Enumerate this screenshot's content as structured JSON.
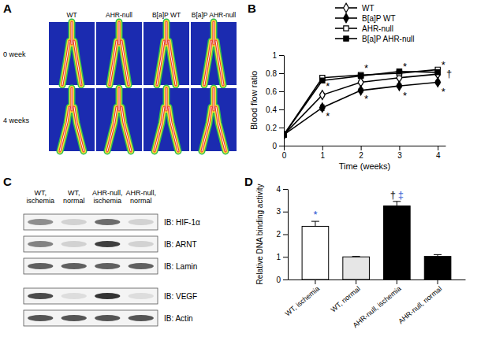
{
  "panels": {
    "A": {
      "label": "A",
      "columns": [
        "WT",
        "AHR-null",
        "B[a]P WT",
        "B[a]P AHR-null"
      ],
      "rows": [
        "0 week",
        "4 weeks"
      ]
    },
    "C": {
      "label": "C",
      "lanes": [
        "WT, ischemia",
        "WT, normal",
        "AHR-null, ischemia",
        "AHR-null, normal"
      ],
      "blots": [
        {
          "label": "IB: HIF-1α",
          "intensity": [
            0.45,
            0.15,
            0.6,
            0.15
          ]
        },
        {
          "label": "IB: ARNT",
          "intensity": [
            0.5,
            0.15,
            0.8,
            0.15
          ]
        },
        {
          "label": "IB: Lamin",
          "intensity": [
            0.65,
            0.65,
            0.65,
            0.65
          ]
        },
        {
          "label": "IB: VEGF",
          "intensity": [
            0.75,
            0.1,
            0.85,
            0.1
          ]
        },
        {
          "label": "IB: Actin",
          "intensity": [
            0.7,
            0.7,
            0.7,
            0.7
          ]
        }
      ]
    }
  },
  "chart_data": [
    {
      "type": "line",
      "title": "B",
      "x_label": "Time (weeks)",
      "y_label": "Blood flow ratio",
      "x": [
        0,
        1,
        2,
        3,
        4
      ],
      "xlim": [
        0,
        4.2
      ],
      "xticks": [
        0,
        1,
        2,
        3,
        4
      ],
      "ylim": [
        0,
        1
      ],
      "yticks": [
        0,
        0.2,
        0.4,
        0.6,
        0.8,
        1
      ],
      "legend": "top-right",
      "series": [
        {
          "name": "WT",
          "color": "#000000",
          "marker": "diamond-open",
          "values": [
            0.12,
            0.56,
            0.7,
            0.75,
            0.79
          ],
          "errors": [
            0.01,
            0.02,
            0.02,
            0.02,
            0.02
          ]
        },
        {
          "name": "B[a]P WT",
          "color": "#000000",
          "marker": "diamond",
          "values": [
            0.12,
            0.42,
            0.61,
            0.66,
            0.7
          ],
          "errors": [
            0.01,
            0.03,
            0.02,
            0.02,
            0.02
          ]
        },
        {
          "name": "AHR-null",
          "color": "#000000",
          "marker": "square-open",
          "values": [
            0.12,
            0.75,
            0.78,
            0.8,
            0.84
          ],
          "errors": [
            0.01,
            0.02,
            0.02,
            0.02,
            0.02
          ]
        },
        {
          "name": "B[a]P AHR-null",
          "color": "#000000",
          "marker": "square",
          "values": [
            0.12,
            0.72,
            0.77,
            0.82,
            0.81
          ],
          "errors": [
            0.01,
            0.02,
            0.02,
            0.02,
            0.02
          ]
        }
      ],
      "annotations": [
        {
          "text": "*",
          "x": 1,
          "y": 0.66
        },
        {
          "text": "*",
          "x": 1,
          "y": 0.33
        },
        {
          "text": "*",
          "x": 2,
          "y": 0.86
        },
        {
          "text": "*",
          "x": 2,
          "y": 0.52
        },
        {
          "text": "*",
          "x": 3,
          "y": 0.88
        },
        {
          "text": "*",
          "x": 3,
          "y": 0.56
        },
        {
          "text": "*",
          "x": 4,
          "y": 0.9
        },
        {
          "text": "*",
          "x": 4,
          "y": 0.6
        },
        {
          "text": "†",
          "x": 4.15,
          "y": 0.8
        }
      ]
    },
    {
      "type": "bar",
      "title": "D",
      "y_label": "Relative DNA binding activity",
      "categories": [
        "WT, ischemia",
        "WT, normal",
        "AHR-null, ischemia",
        "AHR-null, normal"
      ],
      "values": [
        2.35,
        1,
        3.25,
        1.02
      ],
      "errors": [
        0.22,
        0.02,
        0.2,
        0.08
      ],
      "colors": [
        "#ffffff",
        "#e6e6e6",
        "#000000",
        "#000000"
      ],
      "ylim": [
        0,
        4
      ],
      "yticks": [
        0,
        1,
        2,
        3,
        4
      ],
      "annotations": [
        {
          "text": "*",
          "index": 0,
          "color": "#1f4fd1"
        },
        {
          "text": "†",
          "index": 2,
          "color": "#000000"
        },
        {
          "text": "‡",
          "index": 2,
          "color": "#1f4fd1"
        }
      ]
    }
  ]
}
